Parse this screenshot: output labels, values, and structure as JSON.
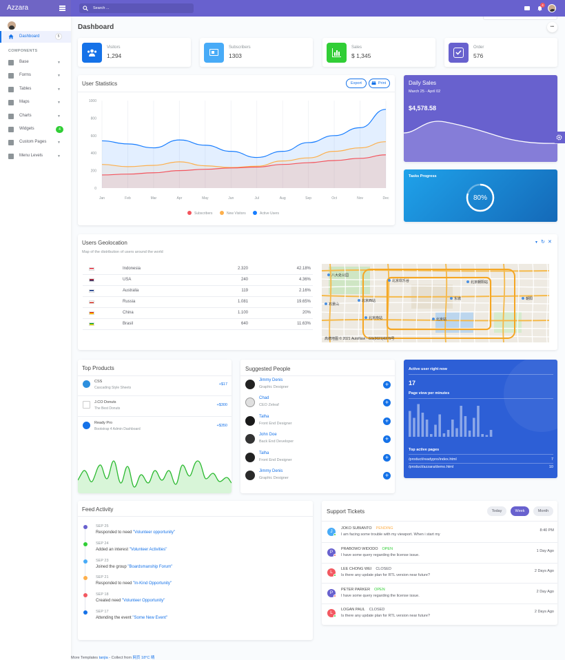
{
  "app": {
    "logo": "Azzara",
    "search_placeholder": "Search ...",
    "notif_count": "4"
  },
  "sidebar": {
    "dashboard_label": "Dashboard",
    "dashboard_badge": "5",
    "section": "COMPONENTS",
    "items": [
      {
        "label": "Base",
        "icon": "layers-icon"
      },
      {
        "label": "Forms",
        "icon": "pen-square-icon"
      },
      {
        "label": "Tables",
        "icon": "table-icon"
      },
      {
        "label": "Maps",
        "icon": "map-marker-icon"
      },
      {
        "label": "Charts",
        "icon": "chart-icon"
      },
      {
        "label": "Widgets",
        "icon": "desktop-icon",
        "badge": "4"
      },
      {
        "label": "Custom Pages",
        "icon": "paint-roller-icon"
      },
      {
        "label": "Menu Levels",
        "icon": "bars-icon"
      }
    ]
  },
  "page": {
    "title": "Dashboard",
    "more": "•••"
  },
  "stats": [
    {
      "label": "Visitors",
      "value": "1,294",
      "color": "#1572e8"
    },
    {
      "label": "Subscribers",
      "value": "1303",
      "color": "#48abf7"
    },
    {
      "label": "Sales",
      "value": "$ 1,345",
      "color": "#31ce36"
    },
    {
      "label": "Order",
      "value": "576",
      "color": "#6861ce"
    }
  ],
  "user_stats": {
    "title": "User Statistics",
    "export": "Export",
    "print": "Print",
    "legend": [
      "Subscribers",
      "New Visitors",
      "Active Users"
    ]
  },
  "chart_data": {
    "type": "area",
    "categories": [
      "Jan",
      "Feb",
      "Mar",
      "Apr",
      "May",
      "Jun",
      "Jul",
      "Aug",
      "Sep",
      "Oct",
      "Nov",
      "Dec"
    ],
    "ylim": [
      0,
      1000
    ],
    "yticks": [
      "1000",
      "800",
      "600",
      "400",
      "200",
      "0"
    ],
    "grid": true,
    "legend_position": "bottom",
    "series": [
      {
        "name": "Subscribers",
        "color": "#f3545d",
        "values": [
          150,
          160,
          175,
          200,
          215,
          230,
          240,
          270,
          290,
          315,
          340,
          380
        ]
      },
      {
        "name": "New Visitors",
        "color": "#fdaf4b",
        "values": [
          270,
          245,
          260,
          300,
          255,
          235,
          250,
          310,
          345,
          420,
          460,
          530
        ]
      },
      {
        "name": "Active Users",
        "color": "#177dff",
        "values": [
          540,
          505,
          460,
          550,
          490,
          420,
          350,
          420,
          520,
          600,
          690,
          900
        ]
      }
    ]
  },
  "daily_sales": {
    "title": "Daily Sales",
    "range": "March 25 - April 02",
    "amount": "$4,578.58"
  },
  "tasks": {
    "title": "Tasks Progress",
    "percent": 80,
    "label": "80%"
  },
  "geo": {
    "title": "Users Geolocation",
    "subtitle": "Map of the distribution of users around the world",
    "rows": [
      {
        "country": "Indonesia",
        "count": "2.320",
        "pct": "42.18%"
      },
      {
        "country": "USA",
        "count": "240",
        "pct": "4.36%"
      },
      {
        "country": "Australia",
        "count": "119",
        "pct": "2.16%"
      },
      {
        "country": "Russia",
        "count": "1.081",
        "pct": "19.65%"
      },
      {
        "country": "China",
        "count": "1.100",
        "pct": "20%"
      },
      {
        "country": "Brasil",
        "count": "640",
        "pct": "11.63%"
      }
    ],
    "map_labels": [
      "八大处公园",
      "北京欢乐谷",
      "北京朝阳站",
      "北京西站",
      "北京南站",
      "北京站",
      "石景山",
      "朝阳",
      "东城"
    ],
    "map_footer": "高德地图 © 2021 AutoNavi - GS(2021)6379号"
  },
  "products": {
    "title": "Top Products",
    "items": [
      {
        "name": "CSS",
        "sub": "Cascading Style Sheets",
        "value": "+$17"
      },
      {
        "name": "J.CO Donuts",
        "sub": "The Best Donuts",
        "value": "+$300"
      },
      {
        "name": "Ready Pro",
        "sub": "Bootstrap 4 Admin Dashboard",
        "value": "+$350"
      }
    ]
  },
  "people": {
    "title": "Suggested People",
    "items": [
      {
        "name": "Jimmy Denis",
        "role": "Graphic Designer"
      },
      {
        "name": "Chad",
        "role": "CEO Zeleaf"
      },
      {
        "name": "Talha",
        "role": "Front End Designer"
      },
      {
        "name": "John Doe",
        "role": "Back End Developer"
      },
      {
        "name": "Talha",
        "role": "Front End Designer"
      },
      {
        "name": "Jimmy Denis",
        "role": "Graphic Designer"
      }
    ]
  },
  "active_users": {
    "title": "Active user right now",
    "count": "17",
    "pv_label": "Page view per minutes",
    "bars": [
      0.75,
      0.55,
      0.95,
      0.7,
      0.5,
      0.08,
      0.35,
      0.65,
      0.1,
      0.2,
      0.5,
      0.25,
      0.9,
      0.6,
      0.18,
      0.55,
      0.9,
      0.08,
      0.05,
      0.2
    ],
    "pages_title": "Top active pages",
    "pages": [
      {
        "path": "/product/readypro/index.html",
        "count": "7"
      },
      {
        "path": "/product/azzara/demo.html",
        "count": "10"
      }
    ]
  },
  "feed": {
    "title": "Feed Activity",
    "items": [
      {
        "date": "SEP 25",
        "text": "Responded to need ",
        "link": "\"Volunteer opportunity\"",
        "color": "#6861ce"
      },
      {
        "date": "SEP 24",
        "text": "Added an interest ",
        "link": "\"Volunteer Activities\"",
        "color": "#31ce36"
      },
      {
        "date": "SEP 23",
        "text": "Joined the group ",
        "link": "\"Boardsmanship Forum\"",
        "color": "#48abf7"
      },
      {
        "date": "SEP 21",
        "text": "Responded to need ",
        "link": "\"In-Kind Opportunity\"",
        "color": "#fdaf4b"
      },
      {
        "date": "SEP 18",
        "text": "Created need ",
        "link": "\"Volunteer Opportunity\"",
        "color": "#f25961"
      },
      {
        "date": "SEP 17",
        "text": "Attending the event ",
        "link": "\"Some New Event\"",
        "color": "#1572e8"
      }
    ]
  },
  "tickets": {
    "title": "Support Tickets",
    "tabs": [
      "Today",
      "Week",
      "Month"
    ],
    "items": [
      {
        "initial": "J",
        "color": "#48abf7",
        "name": "JOKO SUBIANTO",
        "status": "PENDING",
        "status_color": "#fdaf4b",
        "msg": "I am facing some trouble with my viewport. When i start my",
        "date": "8:40 PM"
      },
      {
        "initial": "P",
        "color": "#6861ce",
        "name": "PRABOWO WIDODO",
        "status": "OPEN",
        "status_color": "#31ce36",
        "msg": "I have some query regarding the license issue.",
        "date": "1 Day Ago"
      },
      {
        "initial": "L",
        "color": "#f25961",
        "name": "LEE CHONG WEI",
        "status": "CLOSED",
        "status_color": "#575962",
        "msg": "Is there any update plan for RTL version near future?",
        "date": "2 Days Ago"
      },
      {
        "initial": "P",
        "color": "#6861ce",
        "name": "PETER PARKER",
        "status": "OPEN",
        "status_color": "#31ce36",
        "msg": "I have some query regarding the license issue.",
        "date": "2 Day Ago"
      },
      {
        "initial": "L",
        "color": "#f25961",
        "name": "LOGAN PAUL",
        "status": "CLOSED",
        "status_color": "#575962",
        "msg": "Is there any update plan for RTL version near future?",
        "date": "2 Days Ago"
      }
    ]
  },
  "footer": {
    "text": "More Templates ",
    "link1": "tanjia",
    "mid": " - Collect from ",
    "link2": "网页 ",
    "temp": "18°C 晴"
  }
}
